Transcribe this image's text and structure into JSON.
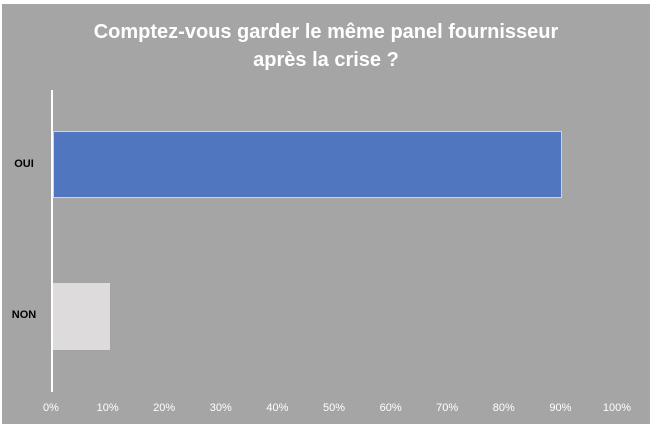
{
  "chart_data": {
    "type": "bar",
    "orientation": "horizontal",
    "title": "Comptez-vous garder le même panel fournisseur après la crise ?",
    "title_lines": [
      "Comptez-vous garder le même panel fournisseur",
      "après la crise ?"
    ],
    "categories": [
      "OUI",
      "NON"
    ],
    "values": [
      90,
      10
    ],
    "unit": "%",
    "xlabel": "",
    "ylabel": "",
    "xlim": [
      0,
      100
    ],
    "x_ticks": [
      "0%",
      "10%",
      "20%",
      "30%",
      "40%",
      "50%",
      "60%",
      "70%",
      "80%",
      "90%",
      "100%"
    ],
    "grid": false,
    "legend": null,
    "colors": {
      "OUI": "#4f76bf",
      "NON": "#dddbdc",
      "background": "#a5a5a5",
      "title": "#ffffff"
    }
  }
}
